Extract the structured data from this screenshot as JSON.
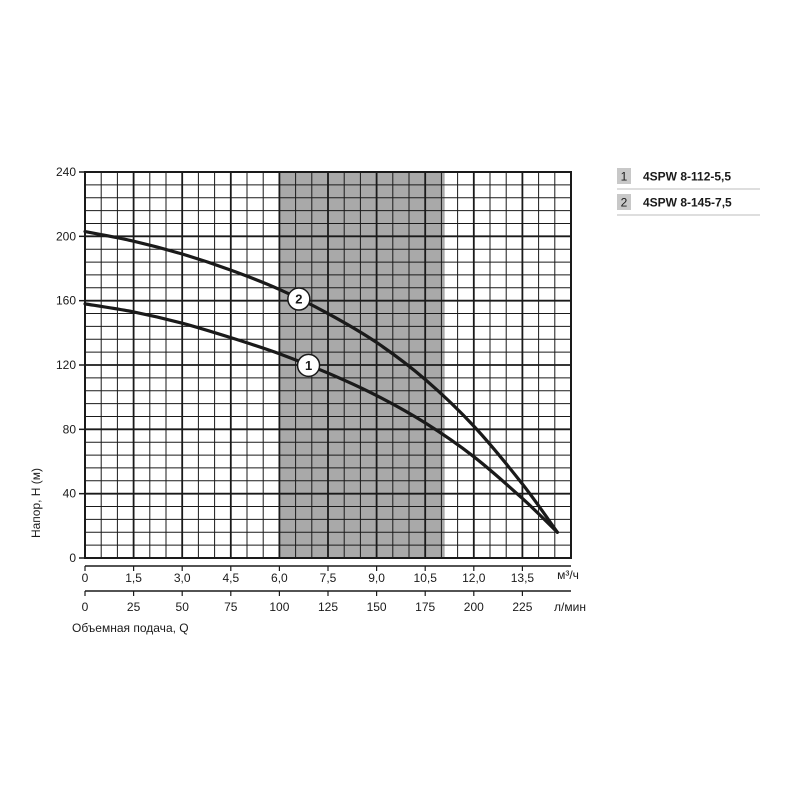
{
  "chart_data": {
    "type": "line",
    "xlabel": "Объемная подача, Q",
    "ylabel": "Напор, Н (м)",
    "x_unit_top": "м³/ч",
    "x_unit_bottom": "л/мин",
    "xlim_m3h": [
      0,
      15
    ],
    "xlim_lmin": [
      0,
      250
    ],
    "ylim": [
      0,
      240
    ],
    "grid": true,
    "x_ticks_m3h": [
      "0",
      "1,5",
      "3,0",
      "4,5",
      "6,0",
      "7,5",
      "9,0",
      "10,5",
      "12,0",
      "13,5"
    ],
    "x_ticks_lmin": [
      "0",
      "25",
      "50",
      "75",
      "100",
      "125",
      "150",
      "175",
      "200",
      "225"
    ],
    "y_ticks": [
      "0",
      "40",
      "80",
      "120",
      "160",
      "200",
      "240"
    ],
    "shaded_range_lmin": [
      100,
      185
    ],
    "legend_position": "top-right",
    "series": [
      {
        "name": "4SPW 8-112-5,5",
        "marker": "1",
        "color": "#1a1a1a",
        "points": [
          [
            0,
            158
          ],
          [
            25,
            153
          ],
          [
            50,
            146
          ],
          [
            75,
            137
          ],
          [
            100,
            127
          ],
          [
            125,
            115
          ],
          [
            150,
            101
          ],
          [
            175,
            84
          ],
          [
            200,
            63
          ],
          [
            225,
            37
          ],
          [
            243,
            16
          ]
        ]
      },
      {
        "name": "4SPW 8-145-7,5",
        "marker": "2",
        "color": "#1a1a1a",
        "points": [
          [
            0,
            203
          ],
          [
            25,
            197
          ],
          [
            50,
            189
          ],
          [
            75,
            179
          ],
          [
            100,
            167
          ],
          [
            125,
            152
          ],
          [
            150,
            134
          ],
          [
            175,
            111
          ],
          [
            200,
            82
          ],
          [
            225,
            46
          ],
          [
            243,
            16
          ]
        ]
      }
    ]
  },
  "colors": {
    "grid": "#1a1a1a",
    "shade": "#a9a9a9",
    "legend_box": "#c8c8c8",
    "curve": "#1a1a1a"
  }
}
